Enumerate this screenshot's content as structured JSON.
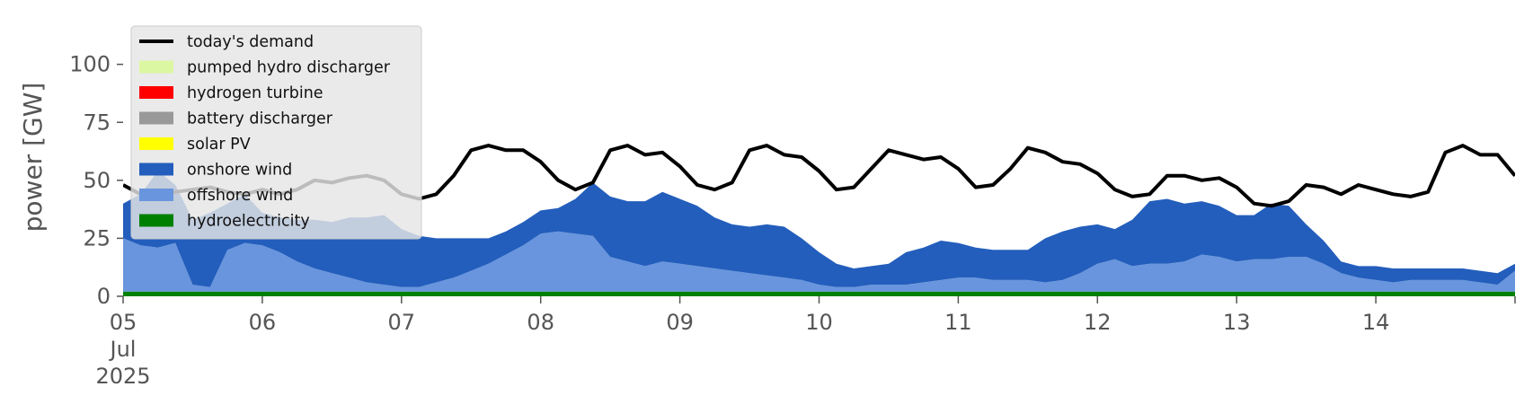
{
  "chart_data": {
    "type": "area",
    "ylabel": "power [GW]",
    "ylim": [
      0,
      120
    ],
    "xlim": [
      "2025-07-05T00:00",
      "2025-07-15T00:00"
    ],
    "y_ticks": [
      0,
      25,
      50,
      75,
      100
    ],
    "x_ticks": [
      {
        "lines": [
          "05",
          "Jul",
          "2025"
        ],
        "at": "2025-07-05"
      },
      {
        "lines": [
          "06"
        ],
        "at": "2025-07-06"
      },
      {
        "lines": [
          "07"
        ],
        "at": "2025-07-07"
      },
      {
        "lines": [
          "08"
        ],
        "at": "2025-07-08"
      },
      {
        "lines": [
          "09"
        ],
        "at": "2025-07-09"
      },
      {
        "lines": [
          "10"
        ],
        "at": "2025-07-10"
      },
      {
        "lines": [
          "11"
        ],
        "at": "2025-07-11"
      },
      {
        "lines": [
          "12"
        ],
        "at": "2025-07-12"
      },
      {
        "lines": [
          "13"
        ],
        "at": "2025-07-13"
      },
      {
        "lines": [
          "14"
        ],
        "at": "2025-07-14"
      }
    ],
    "grid": false,
    "legend_position": "top-left",
    "colors": {
      "hydroelectricity": "#008000",
      "offshore_wind": "#6895dd",
      "onshore_wind": "#235ebc",
      "solar_pv": "#ffff00",
      "battery_discharger": "#999999",
      "hydrogen_turbine": "#ff0000",
      "pumped_hydro_discharger": "#dcf7a1",
      "demand": "#000000"
    },
    "x_hours": [
      0,
      3,
      6,
      9,
      12,
      15,
      18,
      21,
      24,
      27,
      30,
      33,
      36,
      39,
      42,
      45,
      48,
      51,
      54,
      57,
      60,
      63,
      66,
      69,
      72,
      75,
      78,
      81,
      84,
      87,
      90,
      93,
      96,
      99,
      102,
      105,
      108,
      111,
      114,
      117,
      120,
      123,
      126,
      129,
      132,
      135,
      138,
      141,
      144,
      147,
      150,
      153,
      156,
      159,
      162,
      165,
      168,
      171,
      174,
      177,
      180,
      183,
      186,
      189,
      192,
      195,
      198,
      201,
      204,
      207,
      210,
      213,
      216,
      219,
      222,
      225,
      228,
      231,
      234,
      237,
      240
    ],
    "series": [
      {
        "key": "hydroelectricity",
        "name": "hydroelectricity",
        "values": [
          2,
          2,
          2,
          2,
          2,
          2,
          2,
          2,
          2,
          2,
          2,
          2,
          2,
          2,
          2,
          2,
          2,
          2,
          2,
          2,
          2,
          2,
          2,
          2,
          2,
          2,
          2,
          2,
          2,
          2,
          2,
          2,
          2,
          2,
          2,
          2,
          2,
          2,
          2,
          2,
          2,
          2,
          2,
          2,
          2,
          2,
          2,
          2,
          2,
          2,
          2,
          2,
          2,
          2,
          2,
          2,
          2,
          2,
          2,
          2,
          2,
          2,
          2,
          2,
          2,
          2,
          2,
          2,
          2,
          2,
          2,
          2,
          2,
          2,
          2,
          2,
          2,
          2,
          2,
          2,
          2
        ]
      },
      {
        "key": "offshore_wind",
        "name": "offshore wind",
        "values": [
          23,
          20,
          19,
          21,
          3,
          2,
          18,
          21,
          20,
          17,
          13,
          10,
          8,
          6,
          4,
          3,
          2,
          2,
          4,
          6,
          9,
          12,
          16,
          20,
          25,
          26,
          25,
          24,
          15,
          13,
          11,
          13,
          12,
          11,
          10,
          9,
          8,
          7,
          6,
          5,
          3,
          2,
          2,
          3,
          3,
          3,
          4,
          5,
          6,
          6,
          5,
          5,
          5,
          4,
          5,
          8,
          12,
          14,
          11,
          12,
          12,
          13,
          16,
          15,
          13,
          14,
          14,
          15,
          15,
          12,
          8,
          6,
          5,
          4,
          5,
          5,
          5,
          5,
          4,
          3,
          9
        ]
      },
      {
        "key": "onshore_wind",
        "name": "onshore wind",
        "values": [
          15,
          22,
          33,
          25,
          28,
          32,
          20,
          21,
          14,
          15,
          18,
          21,
          22,
          26,
          28,
          30,
          25,
          22,
          19,
          17,
          14,
          11,
          10,
          10,
          10,
          10,
          15,
          23,
          26,
          26,
          28,
          30,
          28,
          26,
          22,
          20,
          20,
          22,
          22,
          18,
          14,
          10,
          8,
          8,
          9,
          14,
          15,
          17,
          15,
          13,
          13,
          13,
          13,
          19,
          21,
          20,
          17,
          13,
          20,
          27,
          28,
          25,
          23,
          22,
          20,
          19,
          24,
          22,
          14,
          10,
          5,
          5,
          6,
          6,
          5,
          5,
          5,
          5,
          5,
          5,
          3
        ]
      },
      {
        "key": "solar_pv",
        "name": "solar PV",
        "values": [
          0,
          0,
          0,
          0,
          0,
          0,
          0,
          0,
          0,
          0,
          0,
          0,
          0,
          0,
          0,
          0,
          0,
          0,
          0,
          0,
          0,
          0,
          0,
          0,
          0,
          0,
          0,
          0,
          0,
          0,
          0,
          0,
          0,
          0,
          0,
          0,
          0,
          0,
          0,
          0,
          0,
          0,
          0,
          0,
          0,
          0,
          0,
          0,
          0,
          0,
          0,
          0,
          0,
          0,
          0,
          0,
          0,
          0,
          0,
          0,
          0,
          0,
          0,
          0,
          0,
          0,
          0,
          0,
          0,
          0,
          0,
          0,
          0,
          0,
          0,
          0,
          0,
          0,
          0,
          0,
          0
        ]
      },
      {
        "key": "battery_discharger",
        "name": "battery discharger",
        "values": [
          0,
          0,
          0,
          0,
          0,
          0,
          0,
          0,
          0,
          0,
          0,
          0,
          0,
          0,
          0,
          0,
          0,
          0,
          0,
          0,
          0,
          0,
          0,
          0,
          0,
          0,
          0,
          0,
          0,
          0,
          0,
          0,
          0,
          0,
          0,
          0,
          0,
          0,
          0,
          0,
          0,
          0,
          0,
          0,
          0,
          0,
          0,
          0,
          0,
          0,
          0,
          0,
          0,
          0,
          0,
          0,
          0,
          0,
          0,
          0,
          0,
          0,
          0,
          0,
          0,
          0,
          0,
          0,
          0,
          0,
          0,
          0,
          0,
          0,
          0,
          0,
          0,
          0,
          0,
          0,
          0
        ]
      },
      {
        "key": "hydrogen_turbine",
        "name": "hydrogen turbine",
        "values": [
          0,
          0,
          0,
          0,
          0,
          0,
          0,
          0,
          0,
          0,
          0,
          0,
          0,
          0,
          0,
          0,
          0,
          0,
          0,
          0,
          0,
          0,
          0,
          0,
          0,
          0,
          0,
          0,
          0,
          0,
          0,
          0,
          0,
          0,
          0,
          0,
          0,
          0,
          0,
          0,
          0,
          0,
          0,
          0,
          0,
          0,
          0,
          0,
          0,
          0,
          0,
          0,
          0,
          0,
          0,
          0,
          0,
          0,
          0,
          0,
          0,
          0,
          0,
          0,
          0,
          0,
          0,
          0,
          0,
          0,
          0,
          0,
          0,
          0,
          0,
          0,
          0,
          0,
          0,
          0,
          0
        ]
      },
      {
        "key": "pumped_hydro_discharger",
        "name": "pumped hydro discharger",
        "values": [
          0,
          0,
          0,
          0,
          0,
          0,
          0,
          0,
          0,
          0,
          0,
          0,
          0,
          0,
          0,
          0,
          0,
          0,
          0,
          0,
          0,
          0,
          0,
          0,
          0,
          0,
          0,
          0,
          0,
          0,
          0,
          0,
          0,
          0,
          0,
          0,
          0,
          0,
          0,
          0,
          0,
          0,
          0,
          0,
          0,
          0,
          0,
          0,
          0,
          0,
          0,
          0,
          0,
          0,
          0,
          0,
          0,
          0,
          0,
          0,
          0,
          0,
          0,
          0,
          0,
          0,
          0,
          0,
          0,
          0,
          0,
          0,
          0,
          0,
          0,
          0,
          0,
          0,
          0,
          0,
          0
        ]
      },
      {
        "key": "demand",
        "name": "today's demand",
        "values": [
          48,
          44,
          44,
          45,
          46,
          47,
          45,
          44,
          46,
          44,
          46,
          50,
          49,
          51,
          52,
          50,
          44,
          42,
          44,
          52,
          63,
          65,
          63,
          63,
          58,
          50,
          46,
          49,
          63,
          65,
          61,
          62,
          56,
          48,
          46,
          49,
          63,
          65,
          61,
          60,
          54,
          46,
          47,
          55,
          63,
          61,
          59,
          60,
          55,
          47,
          48,
          55,
          64,
          62,
          58,
          57,
          53,
          46,
          43,
          44,
          52,
          52,
          50,
          51,
          47,
          40,
          39,
          41,
          48,
          47,
          44,
          48,
          46,
          44,
          43,
          45,
          62,
          65,
          61,
          61,
          52
        ]
      }
    ]
  },
  "legend": {
    "items": [
      {
        "key": "demand",
        "label": "today's demand",
        "kind": "line"
      },
      {
        "key": "pumped_hydro_discharger",
        "label": "pumped hydro discharger",
        "kind": "patch"
      },
      {
        "key": "hydrogen_turbine",
        "label": "hydrogen turbine",
        "kind": "patch"
      },
      {
        "key": "battery_discharger",
        "label": "battery discharger",
        "kind": "patch"
      },
      {
        "key": "solar_pv",
        "label": "solar PV",
        "kind": "patch"
      },
      {
        "key": "onshore_wind",
        "label": "onshore wind",
        "kind": "patch"
      },
      {
        "key": "offshore_wind",
        "label": "offshore wind",
        "kind": "patch"
      },
      {
        "key": "hydroelectricity",
        "label": "hydroelectricity",
        "kind": "patch"
      }
    ]
  }
}
